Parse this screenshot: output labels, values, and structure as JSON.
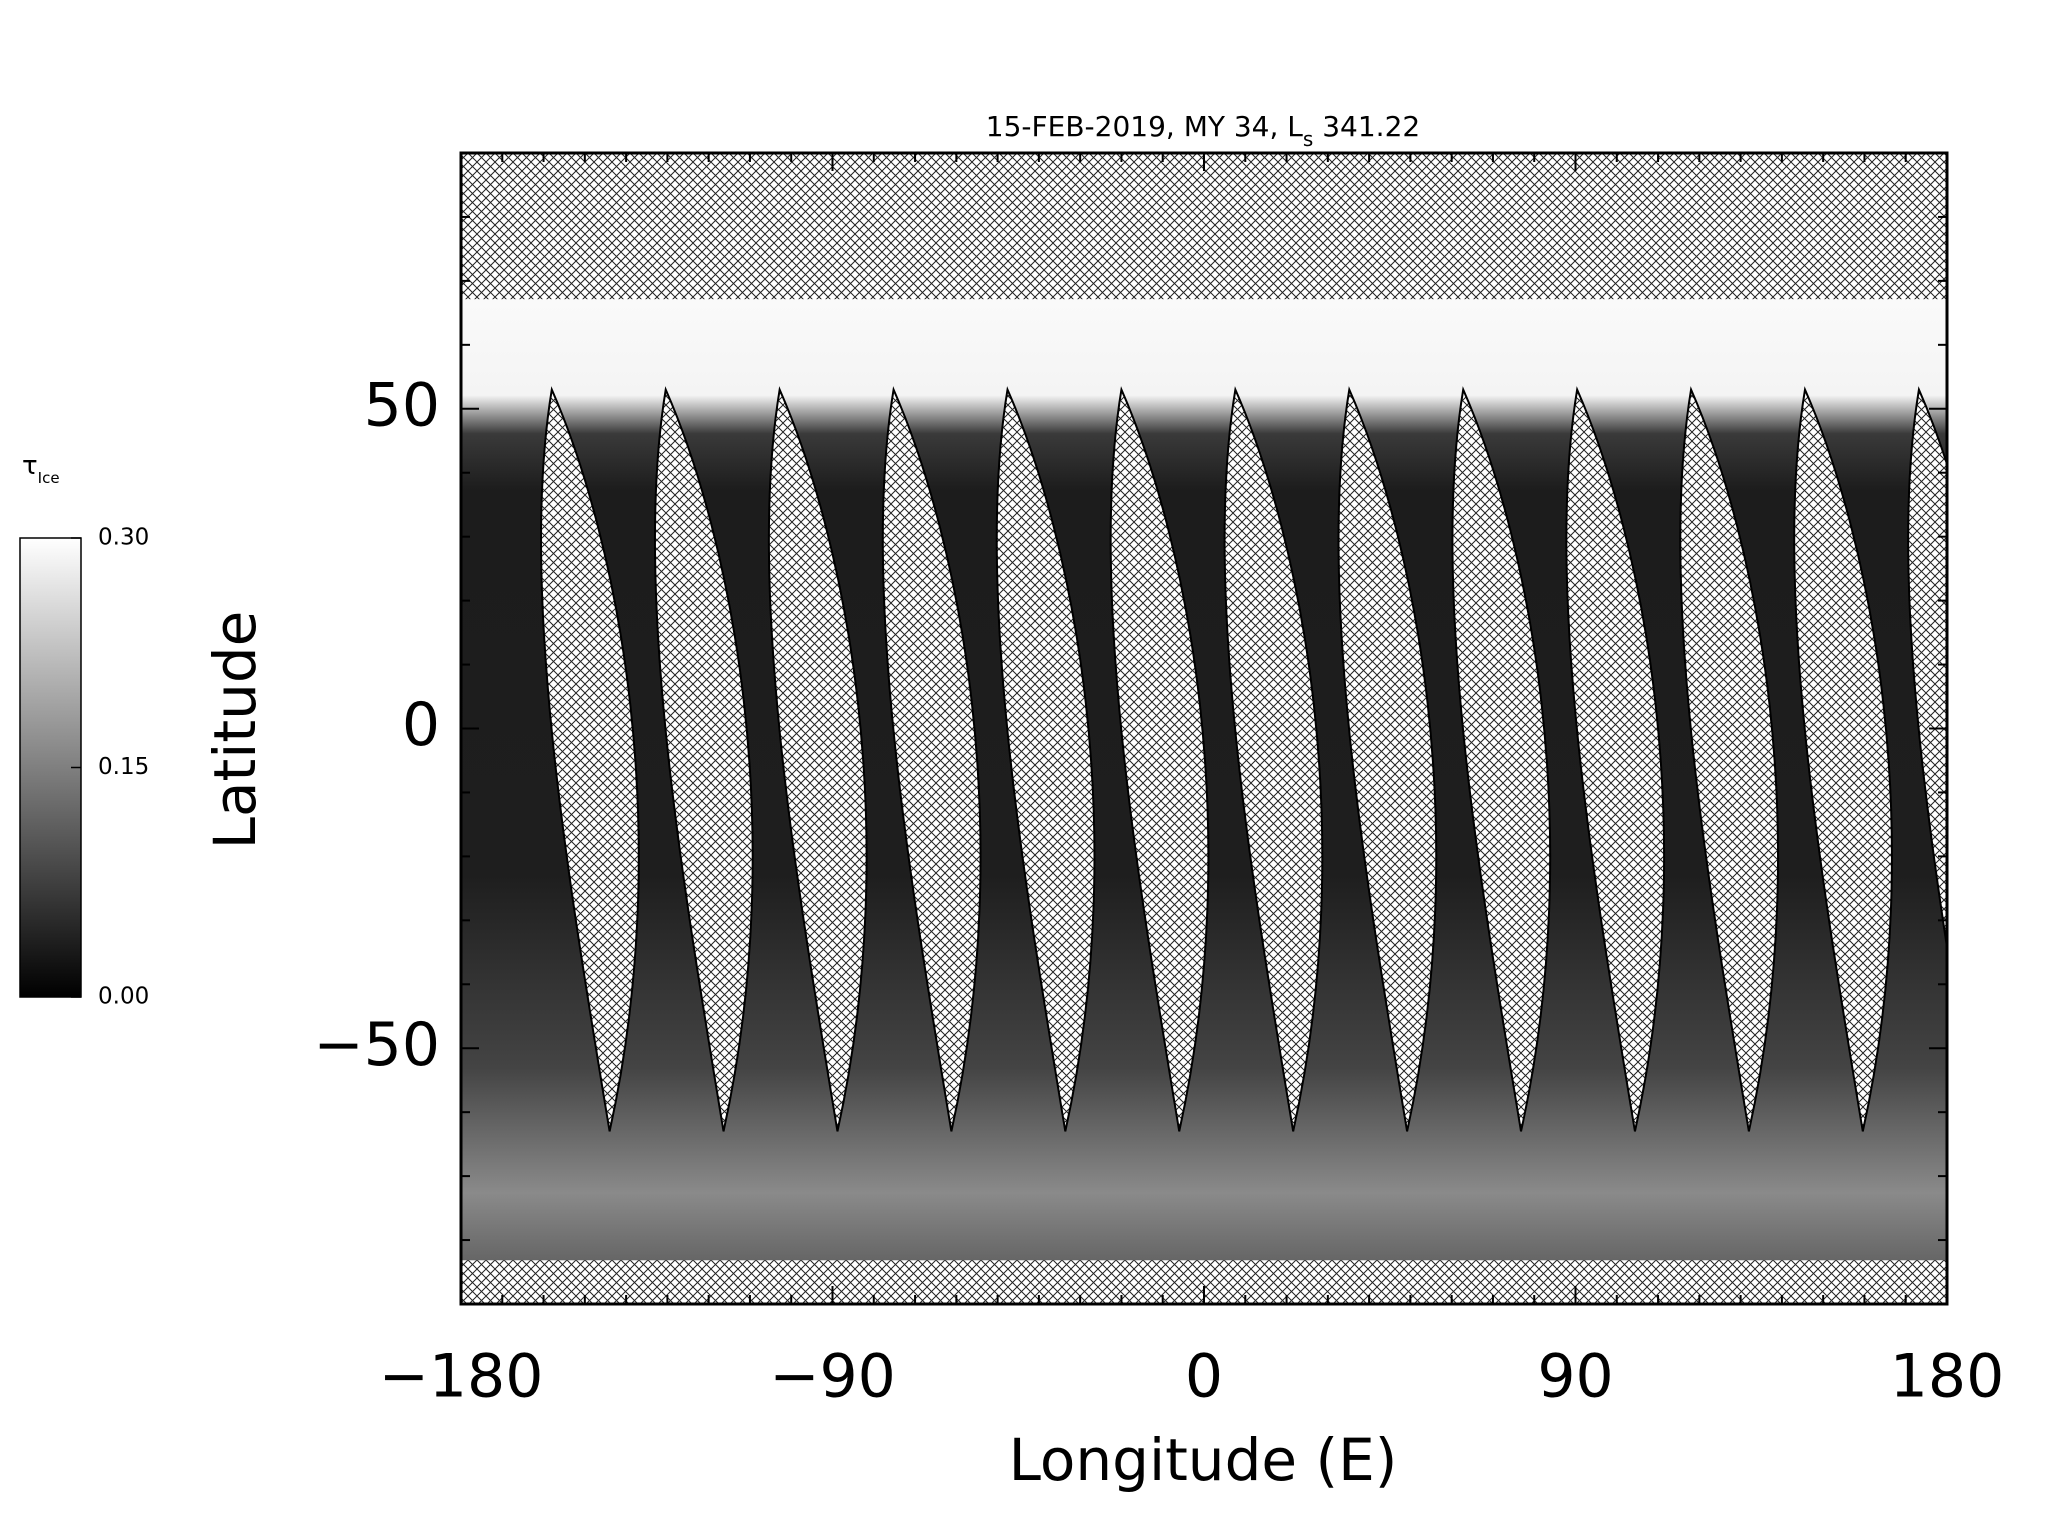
{
  "chart_data": {
    "type": "map",
    "title": "15-FEB-2019, MY 34,  L",
    "title_subscript": "s",
    "title_value": "341.22",
    "xlabel": "Longitude (E)",
    "ylabel": "Latitude",
    "xlim": [
      -180,
      180
    ],
    "ylim": [
      -90,
      90
    ],
    "xticks": [
      {
        "value": -180,
        "label": "−180"
      },
      {
        "value": -90,
        "label": "−90"
      },
      0,
      90,
      180
    ],
    "yticks": [
      {
        "value": -50,
        "label": "−50"
      },
      0,
      50
    ],
    "xminorticks": [
      -170,
      -160,
      -150,
      -140,
      -130,
      -120,
      -110,
      -100,
      -80,
      -70,
      -60,
      -50,
      -40,
      -30,
      -20,
      -10,
      10,
      20,
      30,
      40,
      50,
      60,
      70,
      80,
      100,
      110,
      120,
      130,
      140,
      150,
      160,
      170
    ],
    "yminorticks": [
      -80,
      -70,
      -60,
      -40,
      -30,
      -20,
      -10,
      10,
      20,
      30,
      40,
      60,
      70,
      80
    ],
    "colorbar": {
      "label": "τ",
      "label_subscript": "Ice",
      "lim": [
        0,
        0.3
      ],
      "ticks": [
        {
          "value": 0,
          "label": "0.00"
        },
        {
          "value": 0.15,
          "label": "0.15"
        },
        {
          "value": 0.3,
          "label": "0.30"
        }
      ]
    }
  }
}
